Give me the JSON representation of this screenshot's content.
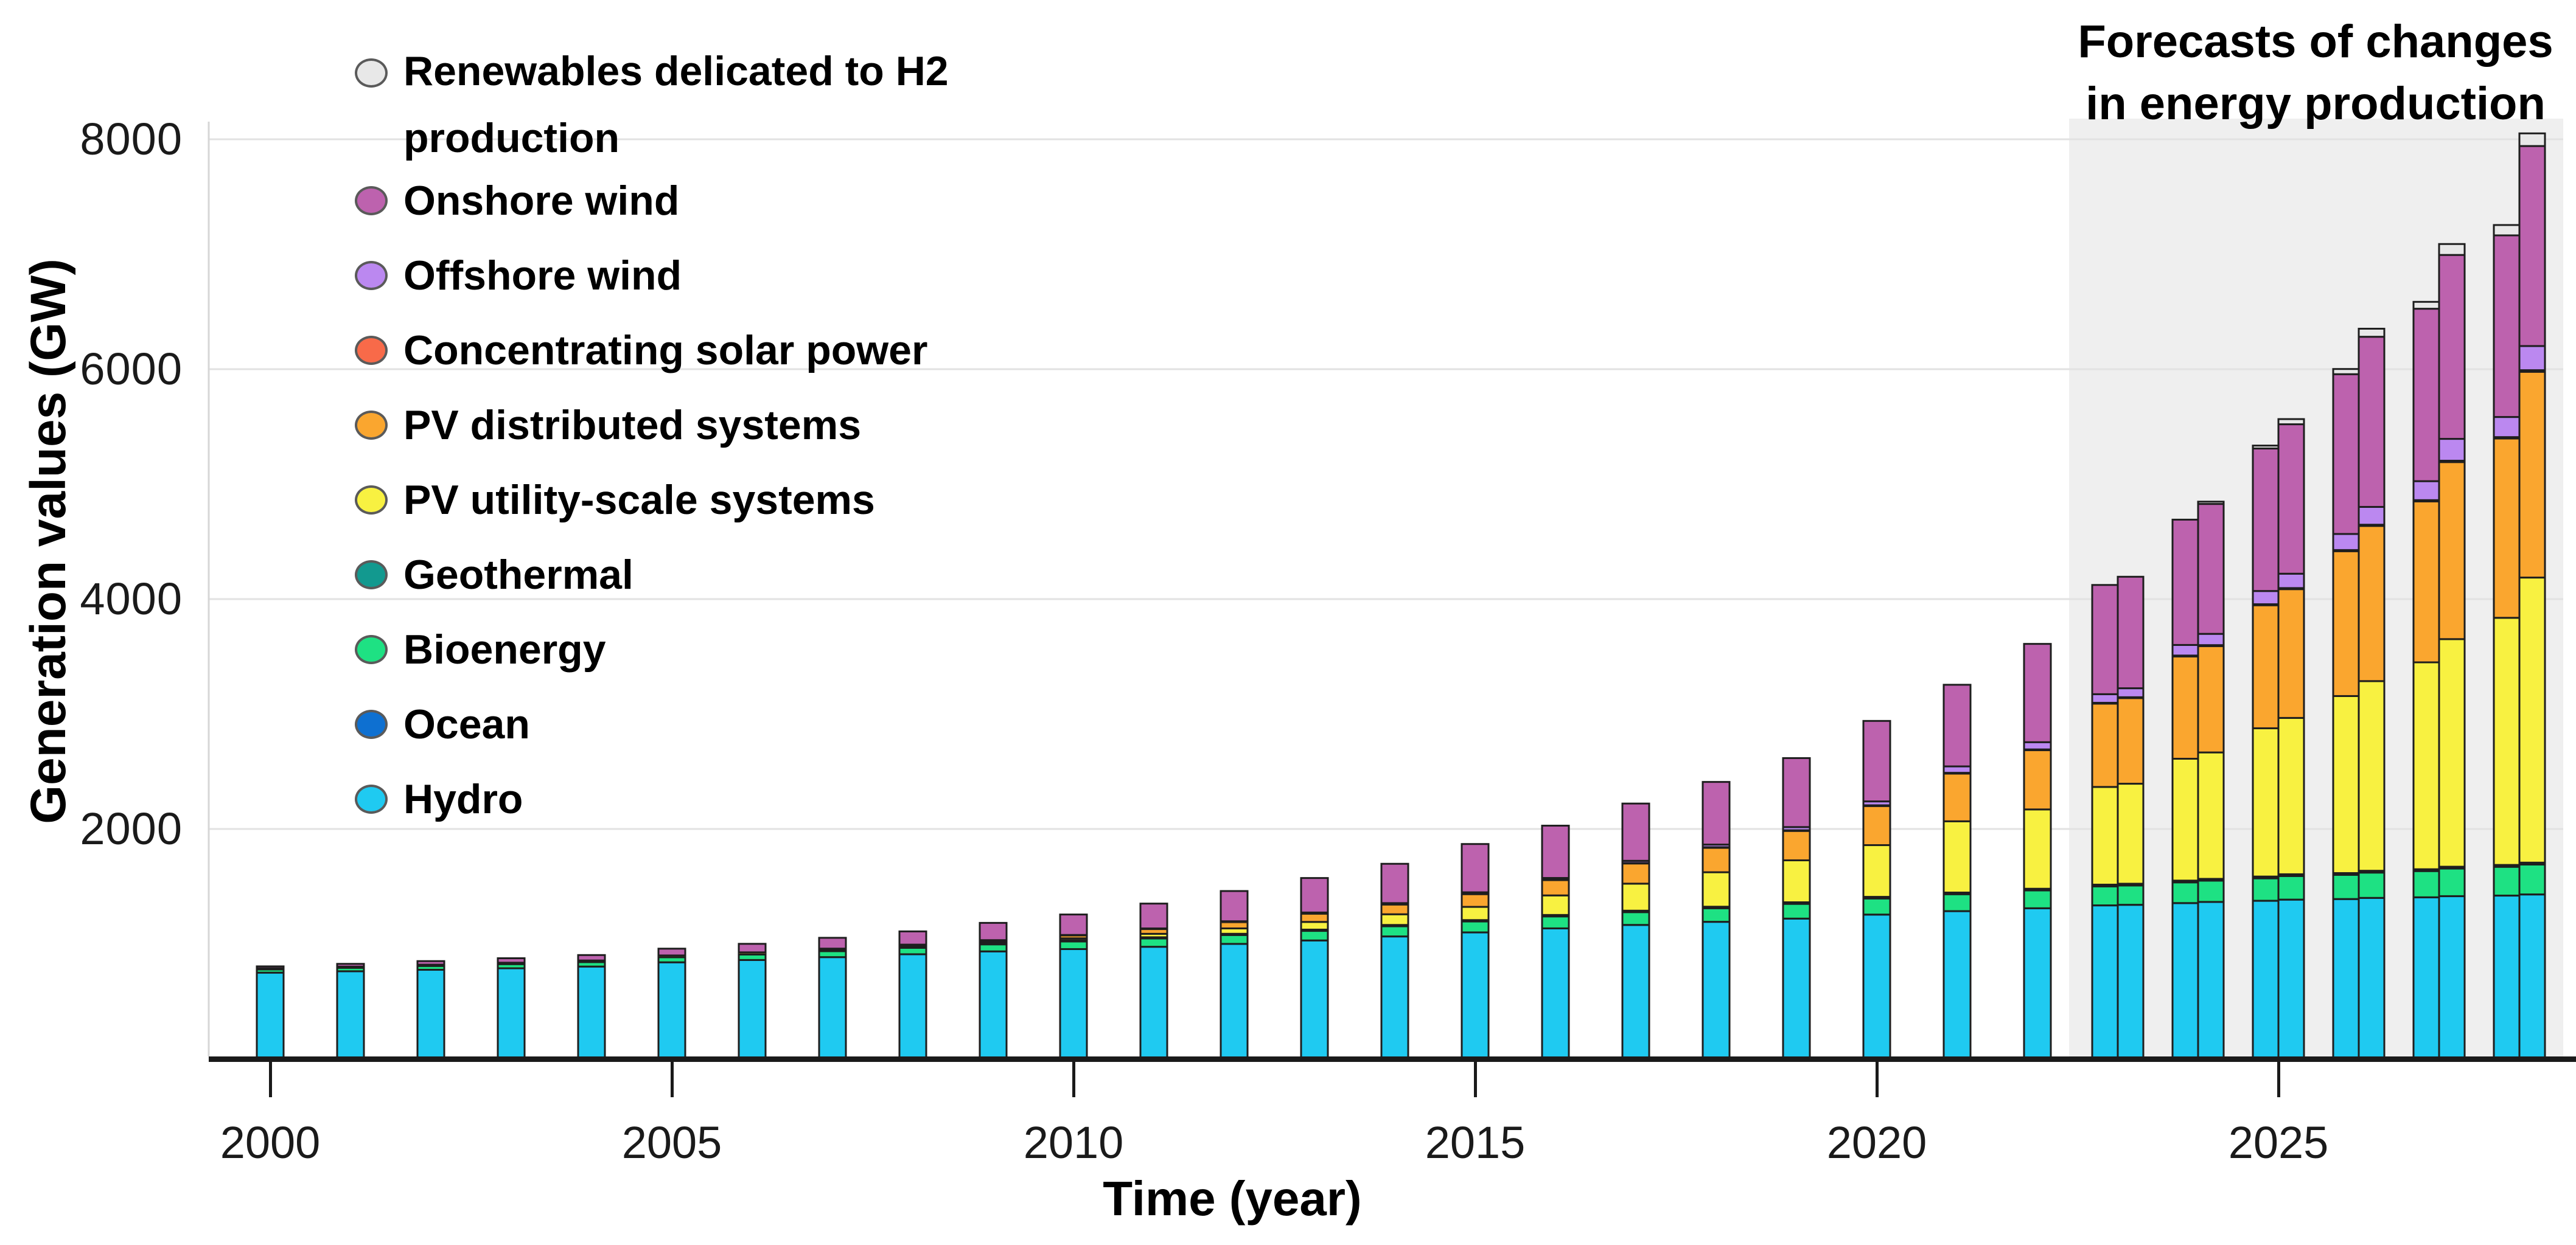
{
  "page": {
    "background": "#FFFFFF"
  },
  "y_axis": {
    "title": "Generation values (GW)",
    "ticks": [
      "2000",
      "4000",
      "6000",
      "8000"
    ],
    "max_gw": 8000
  },
  "x_axis": {
    "title": "Time (year)",
    "ticks": [
      "2000",
      "2005",
      "2010",
      "2015",
      "2020",
      "2025"
    ]
  },
  "annotation": {
    "line1": "Forecasts of changes",
    "line2": "in energy production"
  },
  "legend": {
    "items": [
      {
        "key": "h2",
        "line1": "Renewables delicated to H2",
        "line2": "production",
        "label": "Renewables delicated to H2 production",
        "color": "#E8E8E8"
      },
      {
        "key": "onshore_wind",
        "label": "Onshore wind",
        "color": "#BD62AE"
      },
      {
        "key": "offshore_wind",
        "label": "Offshore wind",
        "color": "#BB88F0"
      },
      {
        "key": "csp",
        "label": "Concentrating solar power",
        "color": "#F86A49"
      },
      {
        "key": "pv_distributed",
        "label": "PV distributed systems",
        "color": "#FAA62F"
      },
      {
        "key": "pv_utility",
        "label": "PV utility-scale systems",
        "color": "#F8F141"
      },
      {
        "key": "geothermal",
        "label": "Geothermal",
        "color": "#12998F"
      },
      {
        "key": "bioenergy",
        "label": "Bioenergy",
        "color": "#1EE183"
      },
      {
        "key": "ocean",
        "label": "Ocean",
        "color": "#0E70D1"
      },
      {
        "key": "hydro",
        "label": "Hydro",
        "color": "#1FCAF1"
      }
    ]
  },
  "chart_data": {
    "type": "bar",
    "stacked": true,
    "unit": "GW",
    "xlabel": "Time (year)",
    "ylabel": "Generation values (GW)",
    "ylim": [
      0,
      8400
    ],
    "yticks": [
      2000,
      4000,
      6000,
      8000
    ],
    "grid": true,
    "forecast_region": {
      "start_year": 2023,
      "end_year": 2028,
      "fill": "#EFEFEF",
      "scenarios": [
        "main",
        "accelerated"
      ]
    },
    "stack_order_bottom_to_top": [
      "hydro",
      "ocean",
      "bioenergy",
      "geothermal",
      "pv_utility",
      "pv_distributed",
      "csp",
      "offshore_wind",
      "onshore_wind",
      "h2"
    ],
    "series_colors": {
      "hydro": "#1FCAF1",
      "ocean": "#0E70D1",
      "bioenergy": "#1EE183",
      "geothermal": "#12998F",
      "pv_utility": "#F8F141",
      "pv_distributed": "#FAA62F",
      "csp": "#F86A49",
      "offshore_wind": "#BB88F0",
      "onshore_wind": "#BD62AE",
      "h2": "#E8E8E8"
    },
    "columns": [
      {
        "year": 2000,
        "scenario": null,
        "values": [
          750,
          0.3,
          28,
          8.0,
          0.3,
          0.9,
          0.4,
          0.0,
          17,
          0
        ]
      },
      {
        "year": 2001,
        "scenario": null,
        "values": [
          762,
          0.3,
          30,
          8.2,
          0.4,
          1.2,
          0.4,
          0.1,
          24,
          0
        ]
      },
      {
        "year": 2002,
        "scenario": null,
        "values": [
          775,
          0.3,
          33,
          8.4,
          0.5,
          1.7,
          0.4,
          0.3,
          31,
          0
        ]
      },
      {
        "year": 2003,
        "scenario": null,
        "values": [
          788,
          0.3,
          36,
          8.6,
          0.7,
          2.2,
          0.4,
          0.5,
          39,
          0
        ]
      },
      {
        "year": 2004,
        "scenario": null,
        "values": [
          803,
          0.3,
          39,
          8.8,
          1.0,
          3.0,
          0.4,
          0.7,
          47,
          0
        ]
      },
      {
        "year": 2005,
        "scenario": null,
        "values": [
          840,
          0.3,
          44,
          9.0,
          1.5,
          4.0,
          0.4,
          0.7,
          59,
          0
        ]
      },
      {
        "year": 2006,
        "scenario": null,
        "values": [
          860,
          0.3,
          48,
          9.3,
          2.5,
          5.5,
          0.4,
          0.9,
          74,
          0
        ]
      },
      {
        "year": 2007,
        "scenario": null,
        "values": [
          885,
          0.3,
          52,
          9.5,
          4.0,
          7.0,
          0.4,
          1.1,
          94,
          0
        ]
      },
      {
        "year": 2008,
        "scenario": null,
        "values": [
          910,
          0.3,
          56,
          9.8,
          6.0,
          10,
          0.5,
          1.5,
          115,
          0
        ]
      },
      {
        "year": 2009,
        "scenario": null,
        "values": [
          935,
          0.3,
          61,
          10.1,
          9.0,
          15,
          0.7,
          2.1,
          150,
          0
        ]
      },
      {
        "year": 2010,
        "scenario": null,
        "values": [
          955,
          0.3,
          66,
          10.4,
          17,
          25,
          1.3,
          3.1,
          178,
          0
        ]
      },
      {
        "year": 2011,
        "scenario": null,
        "values": [
          975,
          0.5,
          72,
          10.6,
          30,
          41,
          1.8,
          4.1,
          216,
          0
        ]
      },
      {
        "year": 2012,
        "scenario": null,
        "values": [
          1000,
          0.5,
          77,
          10.8,
          47,
          54,
          2.5,
          5.4,
          263,
          0
        ]
      },
      {
        "year": 2013,
        "scenario": null,
        "values": [
          1030,
          0.5,
          83,
          11.1,
          67,
          71,
          3.6,
          7.2,
          300,
          0
        ]
      },
      {
        "year": 2014,
        "scenario": null,
        "values": [
          1065,
          0.5,
          88,
          11.6,
          93,
          84,
          4.3,
          8.8,
          342,
          0
        ]
      },
      {
        "year": 2015,
        "scenario": null,
        "values": [
          1100,
          0.5,
          95,
          12.0,
          115,
          110,
          4.7,
          12,
          420,
          0
        ]
      },
      {
        "year": 2016,
        "scenario": null,
        "values": [
          1135,
          0.5,
          104,
          12.6,
          170,
          133,
          4.8,
          14,
          455,
          0
        ]
      },
      {
        "year": 2017,
        "scenario": null,
        "values": [
          1165,
          0.5,
          111,
          12.9,
          235,
          175,
          4.9,
          19,
          498,
          0
        ]
      },
      {
        "year": 2018,
        "scenario": null,
        "values": [
          1192,
          0.5,
          118,
          13.3,
          300,
          212,
          5.5,
          23,
          545,
          0
        ]
      },
      {
        "year": 2019,
        "scenario": null,
        "values": [
          1220,
          0.5,
          128,
          13.9,
          365,
          255,
          6.3,
          28,
          600,
          0
        ]
      },
      {
        "year": 2020,
        "scenario": null,
        "values": [
          1255,
          0.5,
          140,
          14.1,
          450,
          340,
          6.5,
          34,
          700,
          0
        ]
      },
      {
        "year": 2021,
        "scenario": null,
        "values": [
          1285,
          0.5,
          147,
          14.5,
          620,
          415,
          6.6,
          56,
          710,
          0
        ]
      },
      {
        "year": 2022,
        "scenario": null,
        "values": [
          1310,
          0.5,
          155,
          14.7,
          690,
          515,
          7.0,
          63,
          855,
          0
        ]
      },
      {
        "year": 2023,
        "scenario": "main",
        "values": [
          1335,
          0.6,
          165,
          15.2,
          850,
          725,
          7.0,
          75,
          950,
          0
        ]
      },
      {
        "year": 2023,
        "scenario": "accelerated",
        "values": [
          1340,
          0.6,
          168,
          15.2,
          870,
          745,
          7.5,
          78,
          970,
          0
        ]
      },
      {
        "year": 2024,
        "scenario": "main",
        "values": [
          1355,
          0.6,
          180,
          15.4,
          1060,
          890,
          8.0,
          92,
          1090,
          0
        ]
      },
      {
        "year": 2024,
        "scenario": "accelerated",
        "values": [
          1365,
          0.6,
          185,
          15.4,
          1100,
          925,
          8.5,
          98,
          1130,
          20
        ]
      },
      {
        "year": 2025,
        "scenario": "main",
        "values": [
          1375,
          0.7,
          195,
          15.6,
          1290,
          1070,
          9.0,
          115,
          1240,
          25
        ]
      },
      {
        "year": 2025,
        "scenario": "accelerated",
        "values": [
          1385,
          0.7,
          205,
          15.6,
          1360,
          1120,
          9.5,
          125,
          1300,
          45
        ]
      },
      {
        "year": 2026,
        "scenario": "main",
        "values": [
          1390,
          0.7,
          210,
          15.8,
          1540,
          1260,
          10,
          140,
          1390,
          45
        ]
      },
      {
        "year": 2026,
        "scenario": "accelerated",
        "values": [
          1400,
          0.7,
          220,
          15.8,
          1650,
          1350,
          10.5,
          155,
          1480,
          70
        ]
      },
      {
        "year": 2027,
        "scenario": "main",
        "values": [
          1405,
          0.8,
          228,
          16.0,
          1800,
          1400,
          11,
          165,
          1500,
          60
        ]
      },
      {
        "year": 2027,
        "scenario": "accelerated",
        "values": [
          1415,
          0.8,
          240,
          16.0,
          1980,
          1540,
          12,
          190,
          1600,
          95
        ]
      },
      {
        "year": 2028,
        "scenario": "main",
        "values": [
          1420,
          0.9,
          250,
          16.2,
          2150,
          1560,
          12,
          175,
          1580,
          90
        ]
      },
      {
        "year": 2028,
        "scenario": "accelerated",
        "values": [
          1430,
          0.9,
          260,
          16.4,
          2480,
          1790,
          14,
          210,
          1740,
          110
        ]
      }
    ]
  }
}
